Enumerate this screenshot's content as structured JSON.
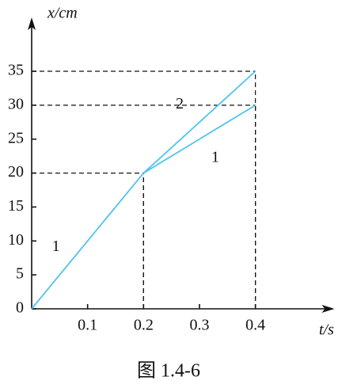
{
  "chart_data": {
    "type": "line",
    "x_label": "x/cm",
    "t_label": "t/s",
    "caption": "图 1.4-6",
    "xlim": [
      0,
      0.53
    ],
    "ylim": [
      0,
      42
    ],
    "xticks": [
      0.1,
      0.2,
      0.3,
      0.4
    ],
    "yticks": [
      0,
      5,
      10,
      15,
      20,
      25,
      30,
      35
    ],
    "series": [
      {
        "name": "1",
        "color": "#4cc4ee",
        "x": [
          0,
          0.2,
          0.4
        ],
        "values": [
          0,
          20,
          30
        ]
      },
      {
        "name": "2",
        "color": "#4cc4ee",
        "x": [
          0.2,
          0.4
        ],
        "values": [
          20,
          35
        ]
      }
    ],
    "guides": true
  }
}
